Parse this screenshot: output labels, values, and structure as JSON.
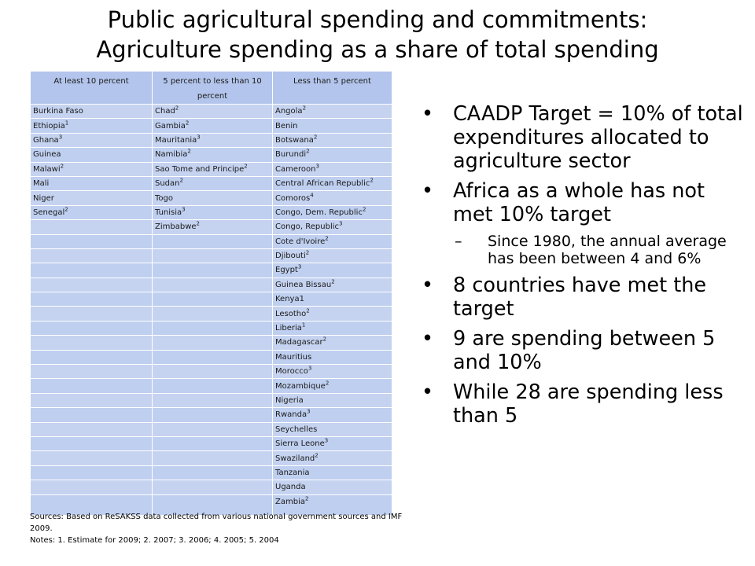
{
  "title": {
    "line1": "Public agricultural spending and commitments:",
    "line2": "Agriculture spending as a share of total spending"
  },
  "table": {
    "headers": [
      "At least 10 percent",
      "5 percent to less than 10 percent",
      "Less than 5 percent"
    ],
    "rows": [
      [
        {
          "t": "Burkina Faso",
          "s": ""
        },
        {
          "t": "Chad",
          "s": "2"
        },
        {
          "t": "Angola",
          "s": "2"
        }
      ],
      [
        {
          "t": "Ethiopia",
          "s": "1"
        },
        {
          "t": "Gambia",
          "s": "2"
        },
        {
          "t": "Benin",
          "s": ""
        }
      ],
      [
        {
          "t": "Ghana",
          "s": "3"
        },
        {
          "t": "Mauritania",
          "s": "3"
        },
        {
          "t": "Botswana",
          "s": "2"
        }
      ],
      [
        {
          "t": "Guinea",
          "s": ""
        },
        {
          "t": "Namibia",
          "s": "2"
        },
        {
          "t": "Burundi",
          "s": "2"
        }
      ],
      [
        {
          "t": "Malawi",
          "s": "2"
        },
        {
          "t": "Sao Tome and Principe",
          "s": "2"
        },
        {
          "t": "Cameroon",
          "s": "3"
        }
      ],
      [
        {
          "t": "Mali",
          "s": ""
        },
        {
          "t": "Sudan",
          "s": "2"
        },
        {
          "t": "Central African Republic",
          "s": "2"
        }
      ],
      [
        {
          "t": "Niger",
          "s": ""
        },
        {
          "t": "Togo",
          "s": ""
        },
        {
          "t": "Comoros",
          "s": "4"
        }
      ],
      [
        {
          "t": "Senegal",
          "s": "2"
        },
        {
          "t": "Tunisia",
          "s": "3"
        },
        {
          "t": "Congo, Dem. Republic",
          "s": "2"
        }
      ],
      [
        {
          "t": "",
          "s": ""
        },
        {
          "t": "Zimbabwe",
          "s": "2"
        },
        {
          "t": "Congo, Republic",
          "s": "3"
        }
      ],
      [
        {
          "t": "",
          "s": ""
        },
        {
          "t": "",
          "s": ""
        },
        {
          "t": "Cote d'Ivoire",
          "s": "2"
        }
      ],
      [
        {
          "t": "",
          "s": ""
        },
        {
          "t": "",
          "s": ""
        },
        {
          "t": "Djibouti",
          "s": "2"
        }
      ],
      [
        {
          "t": "",
          "s": ""
        },
        {
          "t": "",
          "s": ""
        },
        {
          "t": "Egypt",
          "s": "3"
        }
      ],
      [
        {
          "t": "",
          "s": ""
        },
        {
          "t": "",
          "s": ""
        },
        {
          "t": "Guinea Bissau",
          "s": "2"
        }
      ],
      [
        {
          "t": "",
          "s": ""
        },
        {
          "t": "",
          "s": ""
        },
        {
          "t": "Kenya1",
          "s": ""
        }
      ],
      [
        {
          "t": "",
          "s": ""
        },
        {
          "t": "",
          "s": ""
        },
        {
          "t": "Lesotho",
          "s": "2"
        }
      ],
      [
        {
          "t": "",
          "s": ""
        },
        {
          "t": "",
          "s": ""
        },
        {
          "t": "Liberia",
          "s": "1"
        }
      ],
      [
        {
          "t": "",
          "s": ""
        },
        {
          "t": "",
          "s": ""
        },
        {
          "t": "Madagascar",
          "s": "2"
        }
      ],
      [
        {
          "t": "",
          "s": ""
        },
        {
          "t": "",
          "s": ""
        },
        {
          "t": "Mauritius",
          "s": ""
        }
      ],
      [
        {
          "t": "",
          "s": ""
        },
        {
          "t": "",
          "s": ""
        },
        {
          "t": "Morocco",
          "s": "3"
        }
      ],
      [
        {
          "t": "",
          "s": ""
        },
        {
          "t": "",
          "s": ""
        },
        {
          "t": "Mozambique",
          "s": "2"
        }
      ],
      [
        {
          "t": "",
          "s": ""
        },
        {
          "t": "",
          "s": ""
        },
        {
          "t": "Nigeria",
          "s": ""
        }
      ],
      [
        {
          "t": "",
          "s": ""
        },
        {
          "t": "",
          "s": ""
        },
        {
          "t": "Rwanda",
          "s": "3"
        }
      ],
      [
        {
          "t": "",
          "s": ""
        },
        {
          "t": "",
          "s": ""
        },
        {
          "t": "Seychelles",
          "s": ""
        }
      ],
      [
        {
          "t": "",
          "s": ""
        },
        {
          "t": "",
          "s": ""
        },
        {
          "t": "Sierra Leone",
          "s": "3"
        }
      ],
      [
        {
          "t": "",
          "s": ""
        },
        {
          "t": "",
          "s": ""
        },
        {
          "t": "Swaziland",
          "s": "2"
        }
      ],
      [
        {
          "t": "",
          "s": ""
        },
        {
          "t": "",
          "s": ""
        },
        {
          "t": "Tanzania",
          "s": ""
        }
      ],
      [
        {
          "t": "",
          "s": ""
        },
        {
          "t": "",
          "s": ""
        },
        {
          "t": "Uganda",
          "s": ""
        }
      ],
      [
        {
          "t": "",
          "s": ""
        },
        {
          "t": "",
          "s": ""
        },
        {
          "t": "Zambia",
          "s": "2"
        }
      ]
    ]
  },
  "bullets": [
    {
      "text": "CAADP Target = 10% of total expenditures allocated to agriculture sector"
    },
    {
      "text": "Africa as a whole has not met 10% target",
      "sub": "Since 1980, the annual average has been between 4 and 6%"
    },
    {
      "text": "8 countries have met the target"
    },
    {
      "text": "9 are spending between 5 and 10%"
    },
    {
      "text": "While 28 are spending less than 5"
    }
  ],
  "bullet_char": "•",
  "dash_char": "–",
  "notes": {
    "sources": "Sources: Based on ReSAKSS data collected from various national government sources and IMF 2009.",
    "notes": "Notes: 1. Estimate for 2009; 2. 2007; 3. 2006; 4. 2005; 5. 2004"
  },
  "colors": {
    "table_fill": "#c5d3f0",
    "header_fill": "#b3c5ec",
    "border": "#ffffff"
  }
}
